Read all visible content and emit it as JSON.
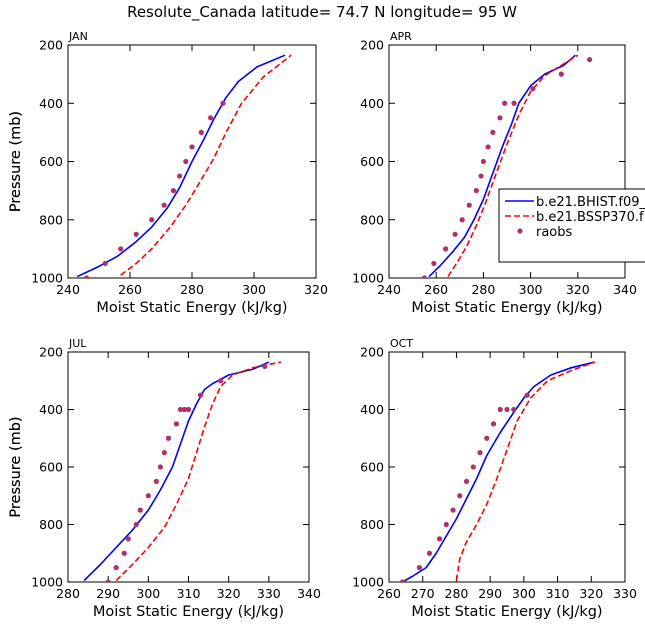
{
  "figure": {
    "title": "Resolute_Canada   latitude= 74.7 N longitude= 95 W"
  },
  "legend": {
    "entries": [
      {
        "label": "b.e21.BHIST.f09_",
        "color": "#0000ff",
        "style": "solid"
      },
      {
        "label": "b.e21.BSSP370.f",
        "color": "#ff0000",
        "style": "dashed"
      },
      {
        "label": "raobs",
        "color": "#b0306a",
        "style": "marker"
      }
    ]
  },
  "colors": {
    "hist": "#0000ff",
    "ssp": "#ff0000",
    "raobs": "#b0306a"
  },
  "chart_data": [
    {
      "type": "line",
      "panel_label": "JAN",
      "xlabel": "Moist Static Energy (kJ/kg)",
      "ylabel": "Pressure (mb)",
      "xlim": [
        240,
        320
      ],
      "ylim": [
        1000,
        200
      ],
      "xticks": [
        "240",
        "260",
        "280",
        "300",
        "320"
      ],
      "yticks": [
        "200",
        "400",
        "600",
        "800",
        "1000"
      ],
      "series": [
        {
          "name": "b.e21.BHIST.f09_",
          "style": "solid",
          "x": [
            243,
            250,
            256,
            262,
            267,
            272,
            276,
            280,
            284,
            287,
            291,
            295,
            301,
            310
          ],
          "y": [
            995,
            960,
            925,
            875,
            825,
            760,
            690,
            600,
            520,
            455,
            380,
            325,
            275,
            235
          ]
        },
        {
          "name": "b.e21.BSSP370.f",
          "style": "dashed",
          "x": [
            257,
            262,
            267,
            273,
            278,
            282,
            287,
            291,
            296,
            303,
            312
          ],
          "y": [
            990,
            950,
            900,
            825,
            750,
            680,
            590,
            500,
            400,
            310,
            235
          ]
        },
        {
          "name": "raobs",
          "style": "marker",
          "x": [
            246,
            252,
            257,
            262,
            267,
            271,
            274,
            276,
            278,
            280,
            283,
            286,
            290
          ],
          "y": [
            1000,
            950,
            900,
            850,
            800,
            750,
            700,
            650,
            600,
            550,
            500,
            450,
            400
          ]
        }
      ]
    },
    {
      "type": "line",
      "panel_label": "APR",
      "xlabel": "Moist Static Energy (kJ/kg)",
      "ylabel": "Pressure (mb)",
      "xlim": [
        240,
        340
      ],
      "ylim": [
        1000,
        200
      ],
      "xticks": [
        "240",
        "260",
        "280",
        "300",
        "320",
        "340"
      ],
      "yticks": [
        "200",
        "400",
        "600",
        "800",
        "1000"
      ],
      "series": [
        {
          "name": "b.e21.BHIST.f09_",
          "style": "solid",
          "x": [
            257,
            262,
            267,
            272,
            276,
            280,
            284,
            288,
            292,
            295,
            300,
            306,
            314,
            319
          ],
          "y": [
            995,
            955,
            910,
            860,
            800,
            730,
            640,
            550,
            470,
            400,
            340,
            300,
            270,
            235
          ]
        },
        {
          "name": "b.e21.BSSP370.f",
          "style": "dashed",
          "x": [
            265,
            269,
            273,
            277,
            281,
            285,
            290,
            295,
            300,
            306,
            313,
            320
          ],
          "y": [
            995,
            945,
            890,
            820,
            740,
            650,
            540,
            440,
            360,
            305,
            270,
            235
          ]
        },
        {
          "name": "raobs",
          "style": "marker",
          "x": [
            255,
            259,
            264,
            268,
            271,
            274,
            277,
            279,
            280,
            282,
            284,
            287,
            289,
            293,
            301,
            313,
            325
          ],
          "y": [
            1000,
            950,
            900,
            850,
            800,
            750,
            700,
            650,
            600,
            550,
            500,
            450,
            400,
            400,
            350,
            300,
            250
          ]
        }
      ]
    },
    {
      "type": "line",
      "panel_label": "JUL",
      "xlabel": "Moist Static Energy (kJ/kg)",
      "ylabel": "Pressure (mb)",
      "xlim": [
        280,
        340
      ],
      "ylim": [
        1000,
        200
      ],
      "xticks": [
        "280",
        "290",
        "300",
        "310",
        "320",
        "330",
        "340"
      ],
      "yticks": [
        "200",
        "400",
        "600",
        "800",
        "1000"
      ],
      "series": [
        {
          "name": "b.e21.BHIST.f09_",
          "style": "solid",
          "x": [
            284,
            288,
            292,
            296,
            300,
            303,
            306,
            308,
            310,
            312,
            314,
            316,
            320,
            326,
            330
          ],
          "y": [
            995,
            940,
            880,
            820,
            750,
            680,
            600,
            520,
            440,
            380,
            330,
            310,
            280,
            260,
            235
          ]
        },
        {
          "name": "b.e21.BSSP370.f",
          "style": "dashed",
          "x": [
            292,
            296,
            300,
            304,
            307,
            310,
            312,
            314,
            316,
            318,
            321,
            326,
            333
          ],
          "y": [
            995,
            940,
            880,
            810,
            730,
            640,
            550,
            460,
            380,
            320,
            280,
            255,
            235
          ]
        },
        {
          "name": "raobs",
          "style": "marker",
          "x": [
            290,
            292,
            294,
            295,
            297,
            298,
            300,
            302,
            303,
            304,
            305,
            307,
            308,
            309,
            310,
            313,
            318,
            329
          ],
          "y": [
            1000,
            950,
            900,
            850,
            800,
            750,
            700,
            650,
            600,
            550,
            500,
            450,
            400,
            400,
            400,
            350,
            300,
            250
          ]
        }
      ]
    },
    {
      "type": "line",
      "panel_label": "OCT",
      "xlabel": "Moist Static Energy (kJ/kg)",
      "ylabel": "Pressure (mb)",
      "xlim": [
        260,
        330
      ],
      "ylim": [
        1000,
        200
      ],
      "xticks": [
        "260",
        "270",
        "280",
        "290",
        "300",
        "310",
        "320",
        "330"
      ],
      "yticks": [
        "200",
        "400",
        "600",
        "800",
        "1000"
      ],
      "series": [
        {
          "name": "b.e21.BHIST.f09_",
          "style": "solid",
          "x": [
            264,
            267,
            271,
            274,
            277,
            280,
            283,
            286,
            289,
            293,
            297,
            300,
            303,
            308,
            314,
            321
          ],
          "y": [
            1000,
            980,
            950,
            900,
            840,
            780,
            710,
            640,
            560,
            480,
            410,
            360,
            320,
            280,
            255,
            235
          ]
        },
        {
          "name": "b.e21.BSSP370.f",
          "style": "dashed",
          "x": [
            280,
            281,
            283,
            286,
            289,
            292,
            295,
            298,
            302,
            307,
            314,
            321
          ],
          "y": [
            995,
            920,
            860,
            800,
            730,
            640,
            540,
            440,
            360,
            300,
            265,
            235
          ]
        },
        {
          "name": "raobs",
          "style": "marker",
          "x": [
            264,
            269,
            272,
            275,
            277,
            279,
            281,
            283,
            285,
            287,
            289,
            291,
            293,
            295,
            297,
            301
          ],
          "y": [
            1000,
            950,
            900,
            850,
            800,
            750,
            700,
            650,
            600,
            550,
            500,
            450,
            400,
            400,
            400,
            350
          ]
        }
      ]
    }
  ]
}
